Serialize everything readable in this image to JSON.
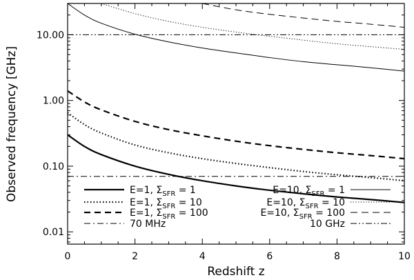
{
  "chart_data": {
    "type": "line",
    "xlabel": "Redshift z",
    "ylabel": "Observed frequency [GHz]",
    "xlim": [
      0,
      10
    ],
    "ylim": [
      0.0065,
      30
    ],
    "yscale": "log",
    "grid": false,
    "legend_placement": "bottom",
    "x_ticks": [
      0,
      2,
      4,
      6,
      8,
      10
    ],
    "x_tick_labels": [
      "0",
      "2",
      "4",
      "6",
      "8",
      "10"
    ],
    "y_ticks": [
      0.01,
      0.1,
      1,
      10
    ],
    "y_tick_labels": [
      "0.01",
      "0.10",
      "1.00",
      "10.00"
    ],
    "series": [
      {
        "name_parts": [
          "E=1, Σ",
          "SFR",
          " = 1"
        ],
        "style": "solid-thick",
        "x": [
          0,
          0.5,
          1,
          2,
          3,
          4,
          5,
          6,
          7,
          8,
          9,
          10
        ],
        "y": [
          0.3,
          0.2,
          0.15,
          0.1,
          0.075,
          0.06,
          0.05,
          0.043,
          0.038,
          0.034,
          0.031,
          0.028
        ]
      },
      {
        "name_parts": [
          "E=1, Σ",
          "SFR",
          " = 10"
        ],
        "style": "dotted-thick",
        "x": [
          0,
          0.5,
          1,
          2,
          3,
          4,
          5,
          6,
          7,
          8,
          9,
          10
        ],
        "y": [
          0.65,
          0.43,
          0.32,
          0.21,
          0.16,
          0.13,
          0.11,
          0.095,
          0.083,
          0.074,
          0.067,
          0.06
        ]
      },
      {
        "name_parts": [
          "E=1, Σ",
          "SFR",
          " = 100"
        ],
        "style": "dashed-thick",
        "x": [
          0,
          0.5,
          1,
          2,
          3,
          4,
          5,
          6,
          7,
          8,
          9,
          10
        ],
        "y": [
          1.4,
          0.95,
          0.72,
          0.48,
          0.36,
          0.29,
          0.24,
          0.205,
          0.18,
          0.16,
          0.145,
          0.13
        ]
      },
      {
        "name_parts": [
          "E=10, Σ",
          "SFR",
          " = 1"
        ],
        "style": "solid-thin",
        "x": [
          0,
          0.5,
          1,
          2,
          3,
          4,
          5,
          6,
          7,
          8,
          9,
          10
        ],
        "y": [
          30,
          20,
          15,
          10.2,
          7.8,
          6.3,
          5.3,
          4.5,
          3.9,
          3.5,
          3.15,
          2.8
        ]
      },
      {
        "name_parts": [
          "E=10, Σ",
          "SFR",
          " = 10"
        ],
        "style": "dotted-thin",
        "x": [
          1,
          2,
          3,
          4,
          5,
          6,
          7,
          8,
          9,
          10
        ],
        "y": [
          30,
          21,
          16,
          13,
          11,
          9.5,
          8.3,
          7.3,
          6.6,
          6
        ]
      },
      {
        "name_parts": [
          "E=10, Σ",
          "SFR",
          " = 100"
        ],
        "style": "dashed-thin",
        "x": [
          4,
          5,
          6,
          7,
          8,
          9,
          10
        ],
        "y": [
          30,
          24,
          20.5,
          18,
          16,
          14.5,
          13
        ]
      },
      {
        "name_parts": [
          "70 MHz",
          "",
          ""
        ],
        "style": "dashdot",
        "x": [
          0,
          10
        ],
        "y": [
          0.07,
          0.07
        ]
      },
      {
        "name_parts": [
          "10 GHz",
          "",
          ""
        ],
        "style": "dashdotdot",
        "x": [
          0,
          10
        ],
        "y": [
          10,
          10
        ]
      }
    ]
  }
}
